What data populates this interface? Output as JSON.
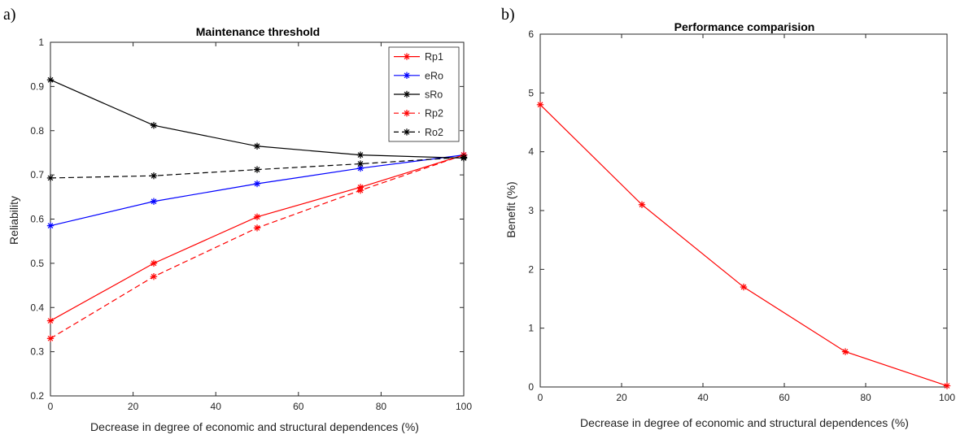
{
  "chart_data": [
    {
      "panel_label": "a)",
      "type": "line",
      "title": "Maintenance threshold",
      "xlabel": "Decrease in degree of economic and structural  dependences (%)",
      "ylabel": "Reliability",
      "xlim": [
        0,
        100
      ],
      "ylim": [
        0.2,
        1
      ],
      "xticks": [
        0,
        20,
        40,
        60,
        80,
        100
      ],
      "xtick_labels": [
        "0",
        "20",
        "40",
        "60",
        "80",
        "100"
      ],
      "yticks": [
        0.2,
        0.3,
        0.4,
        0.5,
        0.6,
        0.7,
        0.8,
        0.9,
        1
      ],
      "ytick_labels": [
        "0.2",
        "0.3",
        "0.4",
        "0.5",
        "0.6",
        "0.7",
        "0.8",
        "0.9",
        "1"
      ],
      "grid": false,
      "legend": "top-right",
      "x": [
        0,
        25,
        50,
        75,
        100
      ],
      "series": [
        {
          "name": "Rp1",
          "values": [
            0.37,
            0.5,
            0.605,
            0.672,
            0.745
          ],
          "color": "#ff0000",
          "dash": "solid"
        },
        {
          "name": "eRo",
          "values": [
            0.585,
            0.64,
            0.68,
            0.715,
            0.745
          ],
          "color": "#0000ff",
          "dash": "solid"
        },
        {
          "name": "sRo",
          "values": [
            0.915,
            0.812,
            0.765,
            0.745,
            0.738
          ],
          "color": "#000000",
          "dash": "solid"
        },
        {
          "name": "Rp2",
          "values": [
            0.33,
            0.47,
            0.58,
            0.665,
            0.745
          ],
          "color": "#ff0000",
          "dash": "dashed"
        },
        {
          "name": "Ro2",
          "values": [
            0.693,
            0.698,
            0.712,
            0.725,
            0.74
          ],
          "color": "#000000",
          "dash": "dashed"
        }
      ]
    },
    {
      "panel_label": "b)",
      "type": "line",
      "title": "Performance comparision",
      "xlabel": "Decrease in degree of economic and structural dependences (%)",
      "ylabel": "Benefit (%)",
      "xlim": [
        0,
        100
      ],
      "ylim": [
        0,
        6
      ],
      "xticks": [
        0,
        20,
        40,
        60,
        80,
        100
      ],
      "xtick_labels": [
        "0",
        "20",
        "40",
        "60",
        "80",
        "100"
      ],
      "yticks": [
        0,
        1,
        2,
        3,
        4,
        5,
        6
      ],
      "ytick_labels": [
        "0",
        "1",
        "2",
        "3",
        "4",
        "5",
        "6"
      ],
      "grid": false,
      "legend": "none",
      "x": [
        0,
        25,
        50,
        75,
        100
      ],
      "series": [
        {
          "values": [
            4.8,
            3.1,
            1.7,
            0.6,
            0.02
          ],
          "color": "#ff0000",
          "dash": "solid"
        }
      ]
    }
  ]
}
